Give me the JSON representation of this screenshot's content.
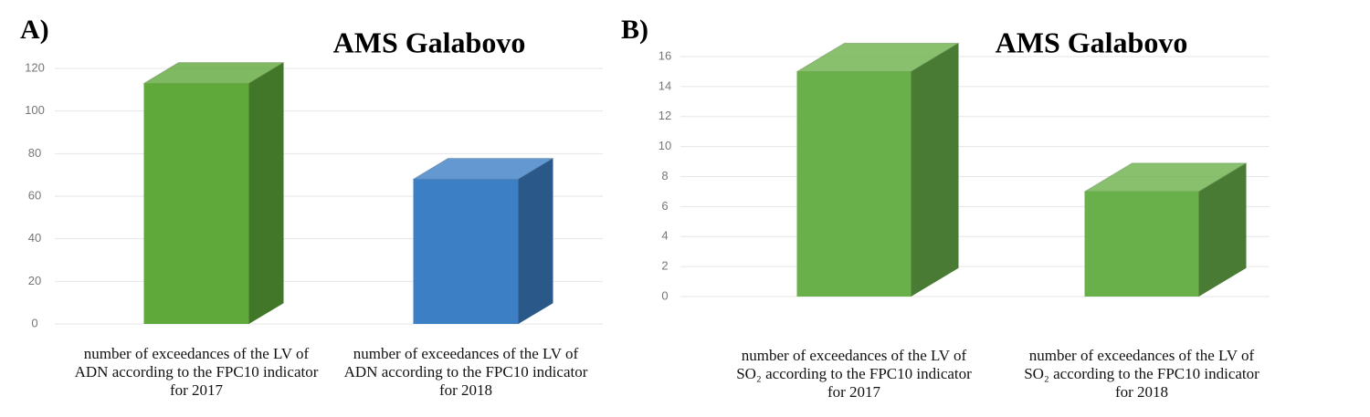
{
  "chart_data": [
    {
      "type": "bar3d",
      "panel_label": "A)",
      "title": "AMS Galabovo",
      "categories": [
        "number of exceedances of the LV of ADN according to the FPC10 indicator for 2017",
        "number of exceedances of the LV of ADN according to the FPC10 indicator for 2018"
      ],
      "values": [
        113,
        68
      ],
      "colors": [
        "#5fa83a",
        "#3c7fc4"
      ],
      "ylim": [
        0,
        120
      ],
      "yticks": [
        0,
        20,
        40,
        60,
        80,
        100,
        120
      ],
      "grid": true
    },
    {
      "type": "bar3d",
      "panel_label": "B)",
      "title": "AMS Galabovo",
      "categories": [
        "number of exceedances of the LV of SO₂ according to the FPC10 indicator for 2017",
        "number of exceedances of the LV of SO₂ according to the FPC10 indicator for 2018"
      ],
      "values": [
        15,
        7
      ],
      "colors": [
        "#6ab04a",
        "#6ab04a"
      ],
      "ylim": [
        0,
        16
      ],
      "yticks": [
        0,
        2,
        4,
        6,
        8,
        10,
        12,
        14,
        16
      ],
      "grid": true
    }
  ]
}
